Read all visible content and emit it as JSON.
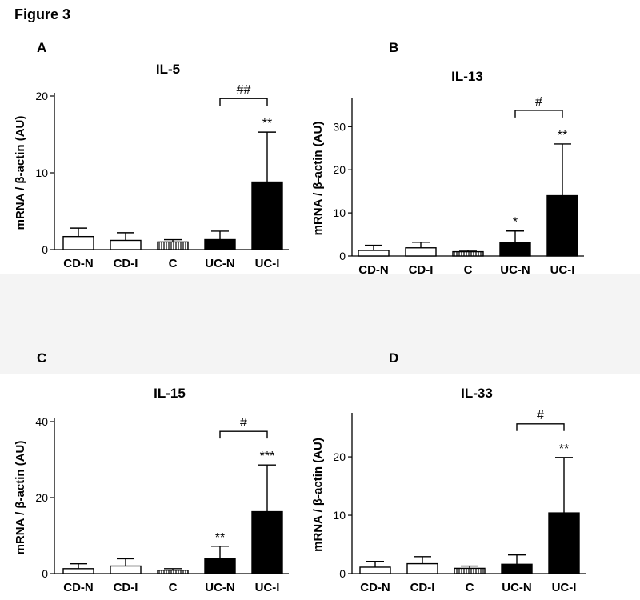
{
  "figure_title": "Figure 3",
  "chart_data": [
    {
      "type": "bar",
      "panel": "A",
      "title": "IL-5",
      "ylabel": "mRNA / β-actin (AU)",
      "categories": [
        "CD-N",
        "CD-I",
        "C",
        "UC-N",
        "UC-I"
      ],
      "values": [
        1.7,
        1.2,
        1.0,
        1.3,
        8.8
      ],
      "errors": [
        1.1,
        1.0,
        0.3,
        1.1,
        6.5
      ],
      "fills": [
        "white",
        "white",
        "hatched",
        "black",
        "black"
      ],
      "ylim": [
        0,
        20
      ],
      "yticks": [
        0,
        10,
        20
      ],
      "annotations": [
        "",
        "",
        "",
        "",
        "**"
      ],
      "bracket": {
        "from": "UC-N",
        "to": "UC-I",
        "label": "##"
      }
    },
    {
      "type": "bar",
      "panel": "B",
      "title": "IL-13",
      "ylabel": "mRNA / β-actin (AU)",
      "categories": [
        "CD-N",
        "CD-I",
        "C",
        "UC-N",
        "UC-I"
      ],
      "values": [
        1.3,
        1.9,
        1.0,
        3.1,
        14.0
      ],
      "errors": [
        1.2,
        1.3,
        0.3,
        2.7,
        12.0
      ],
      "fills": [
        "white",
        "white",
        "hatched",
        "black",
        "black"
      ],
      "ylim": [
        0,
        36
      ],
      "yticks": [
        0,
        10,
        20,
        30
      ],
      "annotations": [
        "",
        "",
        "",
        "*",
        "**"
      ],
      "bracket": {
        "from": "UC-N",
        "to": "UC-I",
        "label": "#"
      }
    },
    {
      "type": "bar",
      "panel": "C",
      "title": "IL-15",
      "ylabel": "mRNA / β-actin (AU)",
      "categories": [
        "CD-N",
        "CD-I",
        "C",
        "UC-N",
        "UC-I"
      ],
      "values": [
        1.3,
        2.0,
        0.9,
        4.0,
        16.3
      ],
      "errors": [
        1.3,
        1.9,
        0.4,
        3.2,
        12.3
      ],
      "fills": [
        "white",
        "white",
        "hatched",
        "black",
        "black"
      ],
      "ylim": [
        0,
        40
      ],
      "yticks": [
        0,
        20,
        40
      ],
      "annotations": [
        "",
        "",
        "",
        "**",
        "***"
      ],
      "bracket": {
        "from": "UC-N",
        "to": "UC-I",
        "label": "#"
      }
    },
    {
      "type": "bar",
      "panel": "D",
      "title": "IL-33",
      "ylabel": "mRNA / β-actin (AU)",
      "categories": [
        "CD-N",
        "CD-I",
        "C",
        "UC-N",
        "UC-I"
      ],
      "values": [
        1.1,
        1.7,
        0.9,
        1.6,
        10.4
      ],
      "errors": [
        1.0,
        1.2,
        0.4,
        1.6,
        9.5
      ],
      "fills": [
        "white",
        "white",
        "hatched",
        "black",
        "black"
      ],
      "ylim": [
        0,
        27
      ],
      "yticks": [
        0,
        10,
        20
      ],
      "annotations": [
        "",
        "",
        "",
        "",
        "**"
      ],
      "bracket": {
        "from": "UC-N",
        "to": "UC-I",
        "label": "#"
      }
    }
  ]
}
